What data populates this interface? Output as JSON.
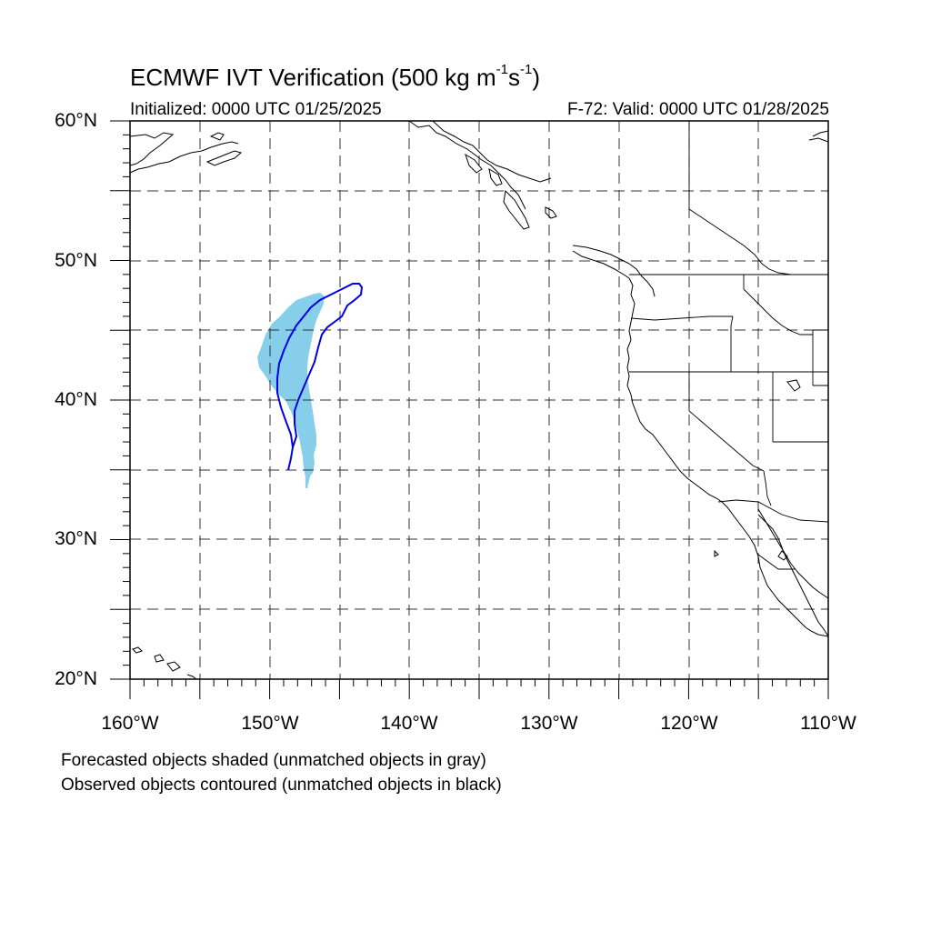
{
  "map": {
    "title_main": "ECMWF IVT Verification (500 kg m",
    "title_exp1": "-1",
    "title_mid": "s",
    "title_exp2": "-1",
    "title_end": ")",
    "initialized": "Initialized: 0000 UTC 01/25/2025",
    "valid": "F-72: Valid: 0000 UTC 01/28/2025",
    "lat_labels": [
      "60°N",
      "50°N",
      "40°N",
      "30°N",
      "20°N"
    ],
    "lon_labels": [
      "160°W",
      "150°W",
      "140°W",
      "130°W",
      "120°W",
      "110°W"
    ],
    "legend": [
      "Forecasted objects shaded (unmatched objects in gray)",
      "Observed objects contoured (unmatched objects in black)"
    ],
    "colors": {
      "forecast_fill": "#87CEEB",
      "observed_contour": "#0000E6",
      "coastline": "#000000"
    }
  }
}
